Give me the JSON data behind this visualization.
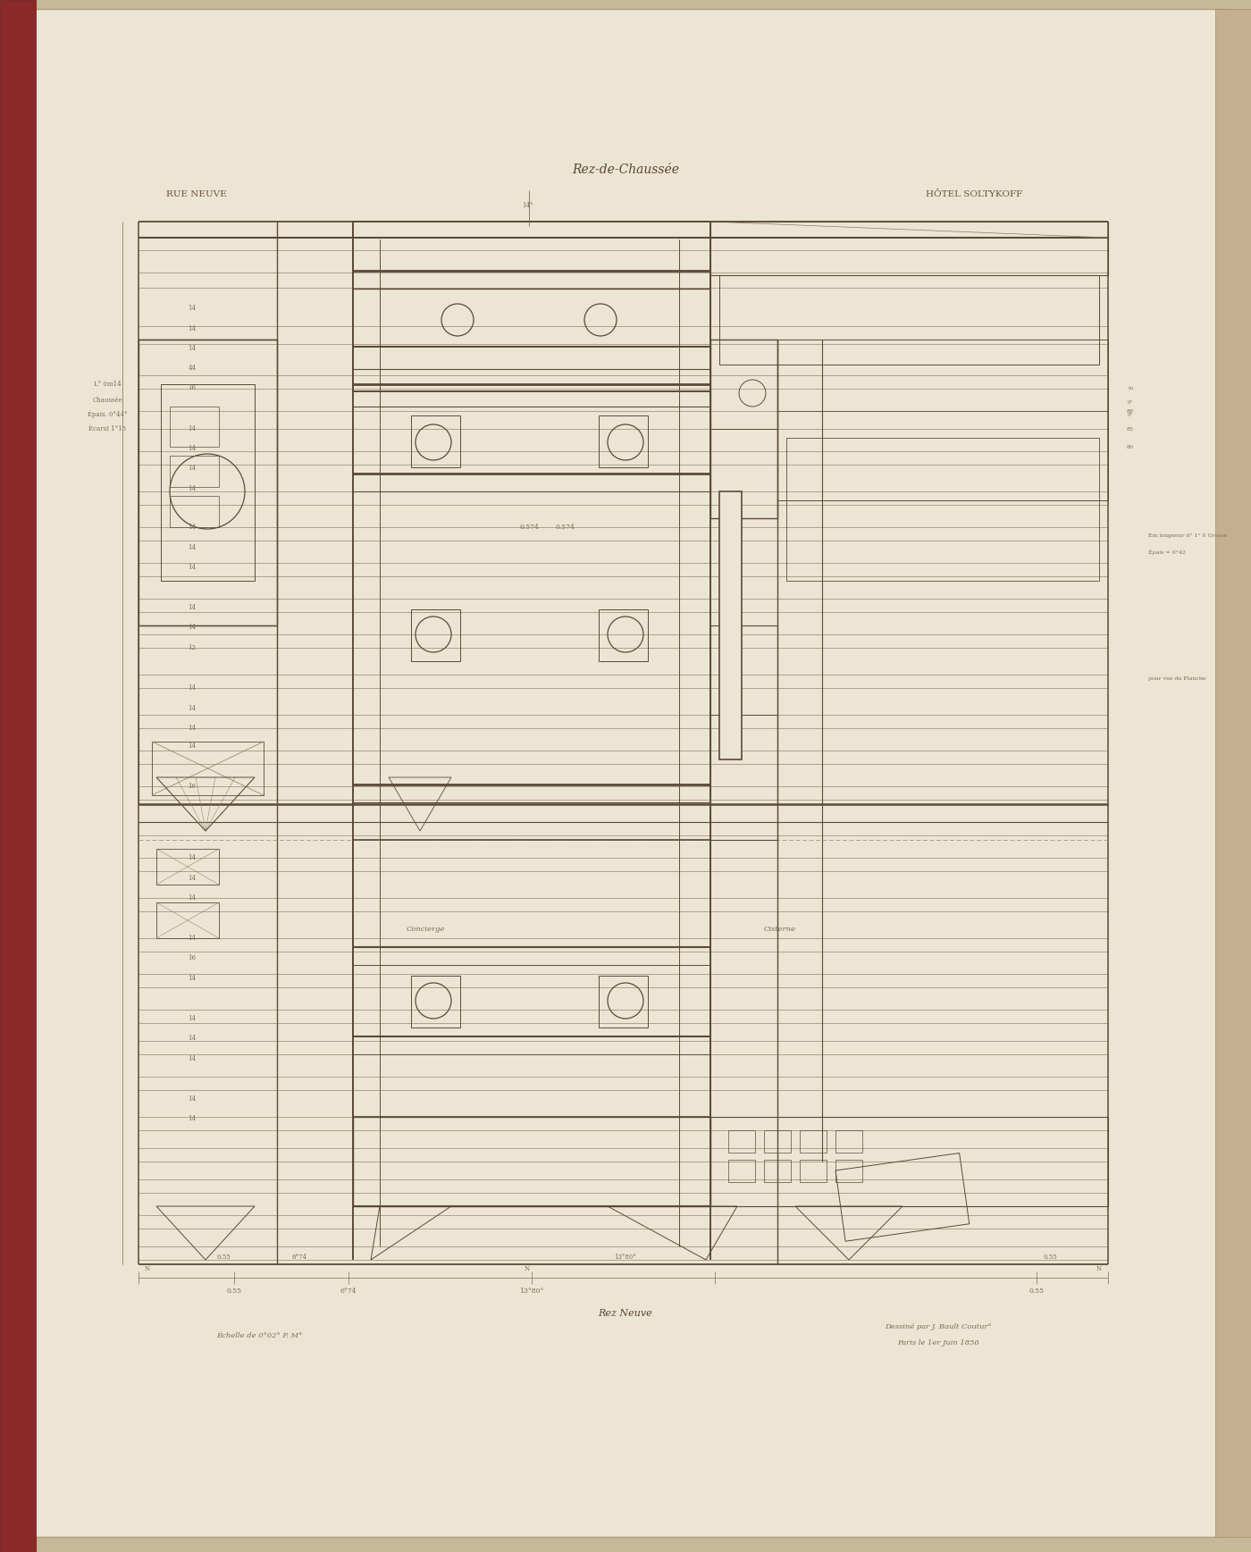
{
  "bg_outer": "#c8b89a",
  "bg_paper": "#ede5d4",
  "bg_left_bind": "#8b2a2a",
  "bg_right_edge": "#c4b090",
  "line_color": "#5a4a38",
  "thin_color": "#8a7a65",
  "dim_color": "#7a6a55",
  "title_center": "Rez-de-Chaussée",
  "title_left": "RUE NEUVE",
  "title_right": "HÔTEL SOLTYKOFF",
  "subtitle_bottom": "Rez Neuve",
  "scale_text": "Échelle de 0°02° P. M°",
  "date_text": "Dessiné par J. Bault Coutur°\nParis le 1er Juin 1856"
}
